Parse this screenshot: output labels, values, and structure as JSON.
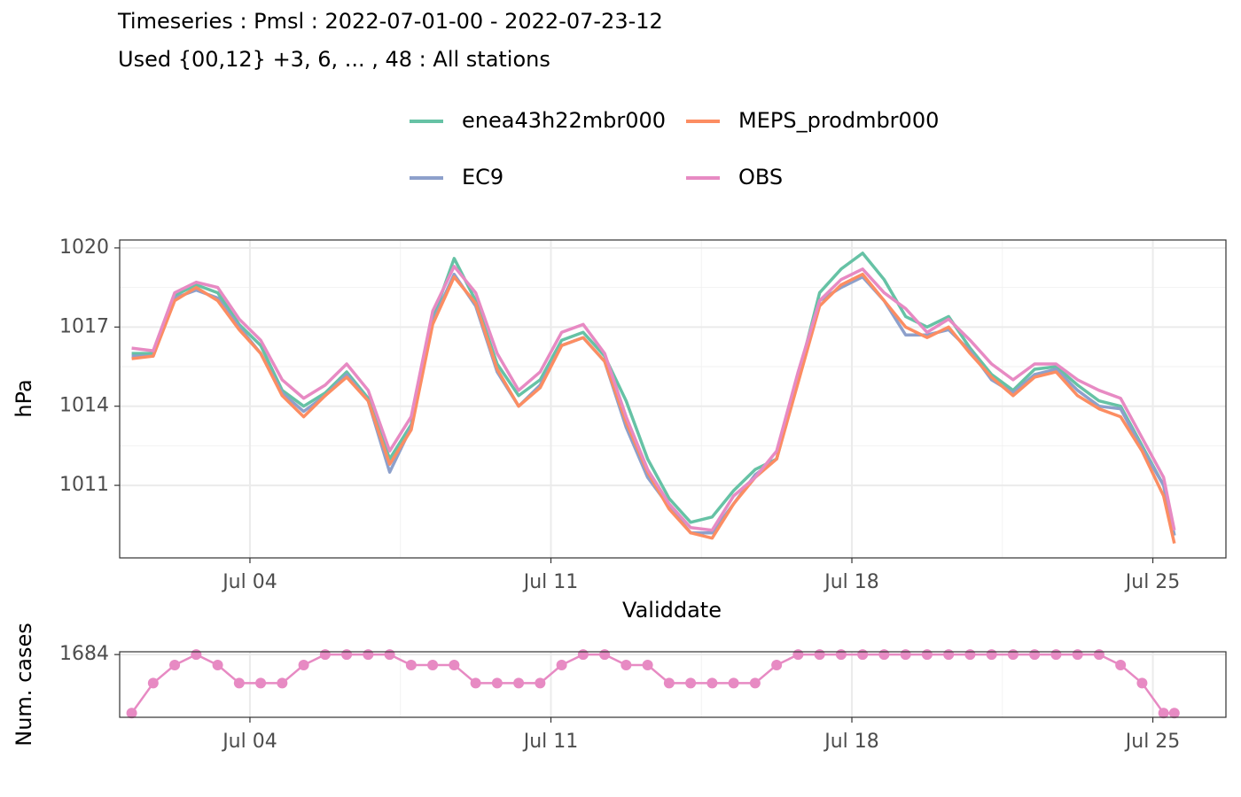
{
  "chart_data": [
    {
      "type": "line",
      "title": "Timeseries : Pmsl : 2022-07-01-00 - 2022-07-23-12",
      "subtitle": "Used {00,12} +3, 6, ... , 48 : All stations",
      "x_label": "Validdate",
      "y_label": "hPa",
      "x": [
        1.25,
        1.75,
        2.25,
        2.75,
        3.25,
        3.75,
        4.25,
        4.75,
        5.25,
        5.75,
        6.25,
        6.75,
        7.25,
        7.75,
        8.25,
        8.75,
        9.25,
        9.75,
        10.25,
        10.75,
        11.25,
        11.75,
        12.25,
        12.75,
        13.25,
        13.75,
        14.25,
        14.75,
        15.25,
        15.75,
        16.25,
        16.75,
        17.25,
        17.75,
        18.25,
        18.75,
        19.25,
        19.75,
        20.25,
        20.75,
        21.25,
        21.75,
        22.25,
        22.75,
        23.25,
        23.75,
        24.25,
        24.75,
        25.25,
        25.5
      ],
      "series": [
        {
          "name": "enea43h22mbr000",
          "color": "#66c2a5",
          "values": [
            1016.0,
            1016.0,
            1018.2,
            1018.6,
            1018.3,
            1017.1,
            1016.3,
            1014.6,
            1014.0,
            1014.5,
            1015.3,
            1014.3,
            1012.0,
            1013.3,
            1017.3,
            1019.6,
            1018.0,
            1015.6,
            1014.4,
            1015.0,
            1016.5,
            1016.8,
            1015.9,
            1014.2,
            1012.0,
            1010.5,
            1009.6,
            1009.8,
            1010.8,
            1011.6,
            1012.0,
            1015.1,
            1018.3,
            1019.2,
            1019.8,
            1018.8,
            1017.4,
            1017.0,
            1017.4,
            1016.2,
            1015.2,
            1014.6,
            1015.4,
            1015.5,
            1014.8,
            1014.2,
            1014.0,
            1012.5,
            1011.0,
            1009.1
          ]
        },
        {
          "name": "EC9",
          "color": "#8da0cb",
          "values": [
            1015.9,
            1015.9,
            1018.1,
            1018.4,
            1018.1,
            1017.0,
            1016.0,
            1014.5,
            1013.8,
            1014.4,
            1015.2,
            1014.2,
            1011.5,
            1013.2,
            1017.2,
            1019.0,
            1017.8,
            1015.3,
            1014.0,
            1014.8,
            1016.3,
            1016.6,
            1015.7,
            1013.2,
            1011.3,
            1010.2,
            1009.2,
            1009.2,
            1010.3,
            1011.4,
            1012.0,
            1015.0,
            1018.0,
            1018.5,
            1018.9,
            1018.0,
            1016.7,
            1016.7,
            1016.9,
            1016.1,
            1015.0,
            1014.5,
            1015.2,
            1015.4,
            1014.6,
            1014.0,
            1013.9,
            1012.4,
            1011.0,
            1009.1
          ]
        },
        {
          "name": "MEPS_prodmbr000",
          "color": "#fc8d62",
          "values": [
            1015.8,
            1015.9,
            1018.0,
            1018.5,
            1018.0,
            1016.9,
            1016.0,
            1014.4,
            1013.6,
            1014.4,
            1015.1,
            1014.2,
            1011.8,
            1013.1,
            1017.1,
            1018.9,
            1017.9,
            1015.4,
            1014.0,
            1014.7,
            1016.3,
            1016.6,
            1015.7,
            1013.4,
            1011.5,
            1010.1,
            1009.2,
            1009.0,
            1010.3,
            1011.3,
            1012.0,
            1014.9,
            1017.8,
            1018.6,
            1019.0,
            1018.0,
            1017.0,
            1016.6,
            1017.0,
            1016.0,
            1015.1,
            1014.4,
            1015.1,
            1015.3,
            1014.4,
            1013.9,
            1013.6,
            1012.3,
            1010.6,
            1008.8
          ]
        },
        {
          "name": "OBS",
          "color": "#e78ac3",
          "values": [
            1016.2,
            1016.1,
            1018.3,
            1018.7,
            1018.5,
            1017.3,
            1016.5,
            1015.0,
            1014.3,
            1014.8,
            1015.6,
            1014.6,
            1012.3,
            1013.6,
            1017.6,
            1019.3,
            1018.3,
            1016.0,
            1014.6,
            1015.3,
            1016.8,
            1017.1,
            1016.0,
            1013.6,
            1011.6,
            1010.3,
            1009.4,
            1009.3,
            1010.6,
            1011.3,
            1012.3,
            1015.3,
            1018.0,
            1018.8,
            1019.2,
            1018.3,
            1017.7,
            1016.8,
            1017.3,
            1016.5,
            1015.6,
            1015.0,
            1015.6,
            1015.6,
            1015.0,
            1014.6,
            1014.3,
            1012.8,
            1011.3,
            1009.3
          ]
        }
      ],
      "xlim": [
        0.97,
        26.7
      ],
      "ylim": [
        1008.25,
        1020.3
      ],
      "xticks": [
        {
          "value": 4,
          "label": "Jul 04"
        },
        {
          "value": 11,
          "label": "Jul 11"
        },
        {
          "value": 18,
          "label": "Jul 18"
        },
        {
          "value": 25,
          "label": "Jul 25"
        }
      ],
      "yticks": [
        1011,
        1014,
        1017,
        1020
      ],
      "grid": true,
      "legend": "top"
    },
    {
      "type": "line",
      "markers": true,
      "y_label": "Num. cases",
      "x": [
        1.25,
        1.75,
        2.25,
        2.75,
        3.25,
        3.75,
        4.25,
        4.75,
        5.25,
        5.75,
        6.25,
        6.75,
        7.25,
        7.75,
        8.25,
        8.75,
        9.25,
        9.75,
        10.25,
        10.75,
        11.25,
        11.75,
        12.25,
        12.75,
        13.25,
        13.75,
        14.25,
        14.75,
        15.25,
        15.75,
        16.25,
        16.75,
        17.25,
        17.75,
        18.25,
        18.75,
        19.25,
        19.75,
        20.25,
        20.75,
        21.25,
        21.75,
        22.25,
        22.75,
        23.25,
        23.75,
        24.25,
        24.75,
        25.25,
        25.5
      ],
      "series": [
        {
          "color": "#e78ac3",
          "values": [
            1600,
            1643,
            1669,
            1684,
            1669,
            1643,
            1643,
            1643,
            1669,
            1684,
            1684,
            1684,
            1684,
            1669,
            1669,
            1669,
            1643,
            1643,
            1643,
            1643,
            1669,
            1684,
            1684,
            1669,
            1669,
            1643,
            1643,
            1643,
            1643,
            1643,
            1669,
            1684,
            1684,
            1684,
            1684,
            1684,
            1684,
            1684,
            1684,
            1684,
            1684,
            1684,
            1684,
            1684,
            1684,
            1684,
            1669,
            1643,
            1600,
            1600
          ]
        }
      ],
      "xlim": [
        0.97,
        26.7
      ],
      "ylim": [
        1594,
        1688
      ],
      "xticks": [
        {
          "value": 4,
          "label": "Jul 04"
        },
        {
          "value": 11,
          "label": "Jul 11"
        },
        {
          "value": 18,
          "label": "Jul 18"
        },
        {
          "value": 25,
          "label": "Jul 25"
        }
      ],
      "yticks": [
        1684
      ],
      "grid": true
    }
  ]
}
